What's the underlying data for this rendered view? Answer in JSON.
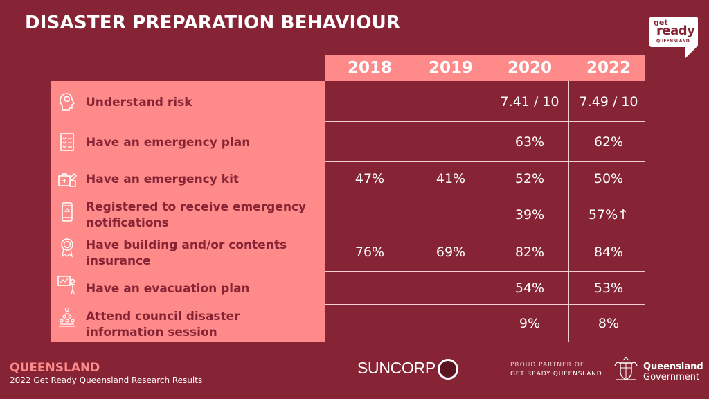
{
  "slide": {
    "title": "DISASTER PREPARATION BEHAVIOUR"
  },
  "logo": {
    "get": "get",
    "ready": "ready",
    "queensland": "QUEENSLAND"
  },
  "table": {
    "years": [
      "2018",
      "2019",
      "2020",
      "2022"
    ],
    "rows": [
      {
        "label": "Understand risk",
        "icon": "brain-head-icon",
        "values": [
          "",
          "",
          "7.41 / 10",
          "7.49 / 10"
        ]
      },
      {
        "label": "Have an emergency plan",
        "icon": "checklist-icon",
        "values": [
          "",
          "",
          "63%",
          "62%"
        ]
      },
      {
        "label": "Have an emergency kit",
        "icon": "emergency-kit-icon",
        "values": [
          "47%",
          "41%",
          "52%",
          "50%"
        ]
      },
      {
        "label": "Registered to receive emergency notifications",
        "icon": "mobile-phone-icon",
        "values": [
          "",
          "",
          "39%",
          "57%↑"
        ]
      },
      {
        "label": "Have building and/or contents insurance",
        "icon": "award-badge-icon",
        "values": [
          "76%",
          "69%",
          "82%",
          "84%"
        ]
      },
      {
        "label": "Have an evacuation plan",
        "icon": "presenter-board-icon",
        "values": [
          "",
          "",
          "54%",
          "53%"
        ]
      },
      {
        "label": "Attend council disaster information session",
        "icon": "audience-icon",
        "values": [
          "",
          "",
          "9%",
          "8%"
        ]
      }
    ]
  },
  "footer": {
    "state": "QUEENSLAND",
    "subtitle": "2022 Get Ready Queensland Research Results",
    "suncorp": "SUNCORP",
    "partner_line1": "PROUD PARTNER OF",
    "partner_line2": "GET READY QUEENSLAND",
    "gov_line1": "Queensland",
    "gov_line2": "Government"
  },
  "colors": {
    "background": "#862435",
    "accent": "#ff8a8a",
    "label_text": "#862435"
  }
}
